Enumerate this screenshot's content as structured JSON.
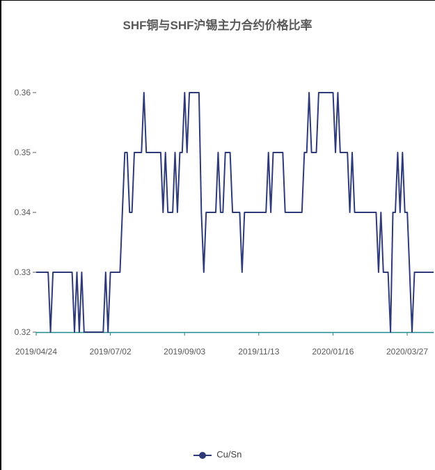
{
  "chart_data": {
    "type": "line",
    "title": "SHF铜与SHF沪锡主力合约价格比率",
    "xlabel": "",
    "ylabel": "",
    "ylim": [
      0.32,
      0.36
    ],
    "y_ticks": [
      "0.32",
      "0.33",
      "0.34",
      "0.35",
      "0.36"
    ],
    "x_ticks": [
      "2019/04/24",
      "2019/07/02",
      "2019/09/03",
      "2019/11/13",
      "2020/01/16",
      "2020/03/27"
    ],
    "grid": false,
    "legend_position": "bottom",
    "colors": {
      "series": "#2e3b78",
      "axis": "#1a8a8a"
    },
    "series": [
      {
        "name": "Cu/Sn",
        "values": [
          0.33,
          0.33,
          0.33,
          0.33,
          0.33,
          0.33,
          0.32,
          0.33,
          0.33,
          0.33,
          0.33,
          0.33,
          0.33,
          0.33,
          0.33,
          0.33,
          0.32,
          0.33,
          0.32,
          0.33,
          0.32,
          0.32,
          0.32,
          0.32,
          0.32,
          0.32,
          0.32,
          0.32,
          0.32,
          0.33,
          0.32,
          0.33,
          0.33,
          0.33,
          0.33,
          0.33,
          0.34,
          0.35,
          0.35,
          0.34,
          0.34,
          0.35,
          0.35,
          0.35,
          0.35,
          0.36,
          0.35,
          0.35,
          0.35,
          0.35,
          0.35,
          0.35,
          0.35,
          0.34,
          0.35,
          0.34,
          0.34,
          0.34,
          0.35,
          0.34,
          0.35,
          0.35,
          0.36,
          0.35,
          0.36,
          0.36,
          0.36,
          0.36,
          0.36,
          0.34,
          0.33,
          0.34,
          0.34,
          0.34,
          0.34,
          0.34,
          0.35,
          0.34,
          0.34,
          0.35,
          0.35,
          0.35,
          0.34,
          0.34,
          0.34,
          0.34,
          0.33,
          0.34,
          0.34,
          0.34,
          0.34,
          0.34,
          0.34,
          0.34,
          0.34,
          0.34,
          0.34,
          0.35,
          0.34,
          0.35,
          0.35,
          0.35,
          0.35,
          0.35,
          0.34,
          0.34,
          0.34,
          0.34,
          0.34,
          0.34,
          0.34,
          0.34,
          0.35,
          0.35,
          0.36,
          0.35,
          0.35,
          0.35,
          0.36,
          0.36,
          0.36,
          0.36,
          0.36,
          0.36,
          0.36,
          0.35,
          0.36,
          0.35,
          0.35,
          0.35,
          0.35,
          0.34,
          0.35,
          0.34,
          0.34,
          0.34,
          0.34,
          0.34,
          0.34,
          0.34,
          0.34,
          0.34,
          0.34,
          0.33,
          0.34,
          0.33,
          0.33,
          0.33,
          0.32,
          0.34,
          0.34,
          0.35,
          0.34,
          0.35,
          0.34,
          0.34,
          0.33,
          0.32,
          0.33,
          0.33,
          0.33,
          0.33,
          0.33,
          0.33,
          0.33,
          0.33,
          0.33
        ]
      }
    ]
  },
  "legend": {
    "label": "Cu/Sn"
  }
}
